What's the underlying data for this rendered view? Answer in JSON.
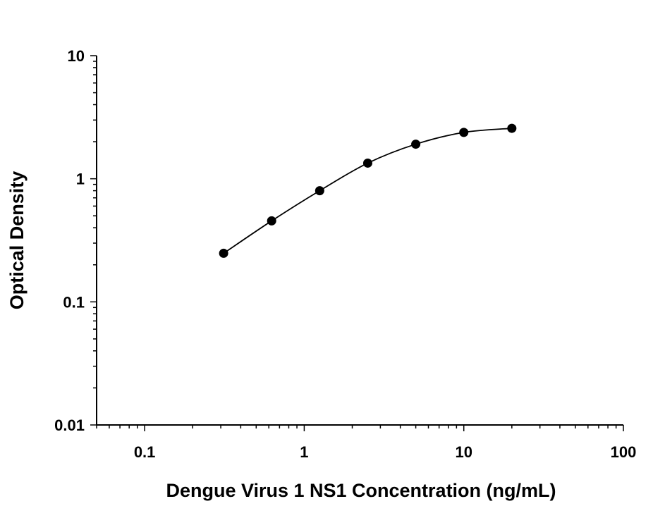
{
  "chart_data": {
    "type": "scatter",
    "xlabel": "Dengue Virus 1 NS1 Concentration (ng/mL)",
    "ylabel": "Optical Density",
    "xscale": "log",
    "yscale": "log",
    "xlim": [
      0.05,
      100
    ],
    "ylim": [
      0.01,
      10
    ],
    "x_ticks": [
      "0.1",
      "1",
      "10",
      "100"
    ],
    "y_ticks": [
      "0.01",
      "0.1",
      "1",
      "10"
    ],
    "grid": false,
    "fit_curve": true,
    "marker_color": "#000000",
    "series": [
      {
        "x": [
          0.3125,
          0.625,
          1.25,
          2.5,
          5,
          10,
          20
        ],
        "y": [
          0.248,
          0.455,
          0.8,
          1.34,
          1.91,
          2.38,
          2.57
        ]
      }
    ]
  }
}
